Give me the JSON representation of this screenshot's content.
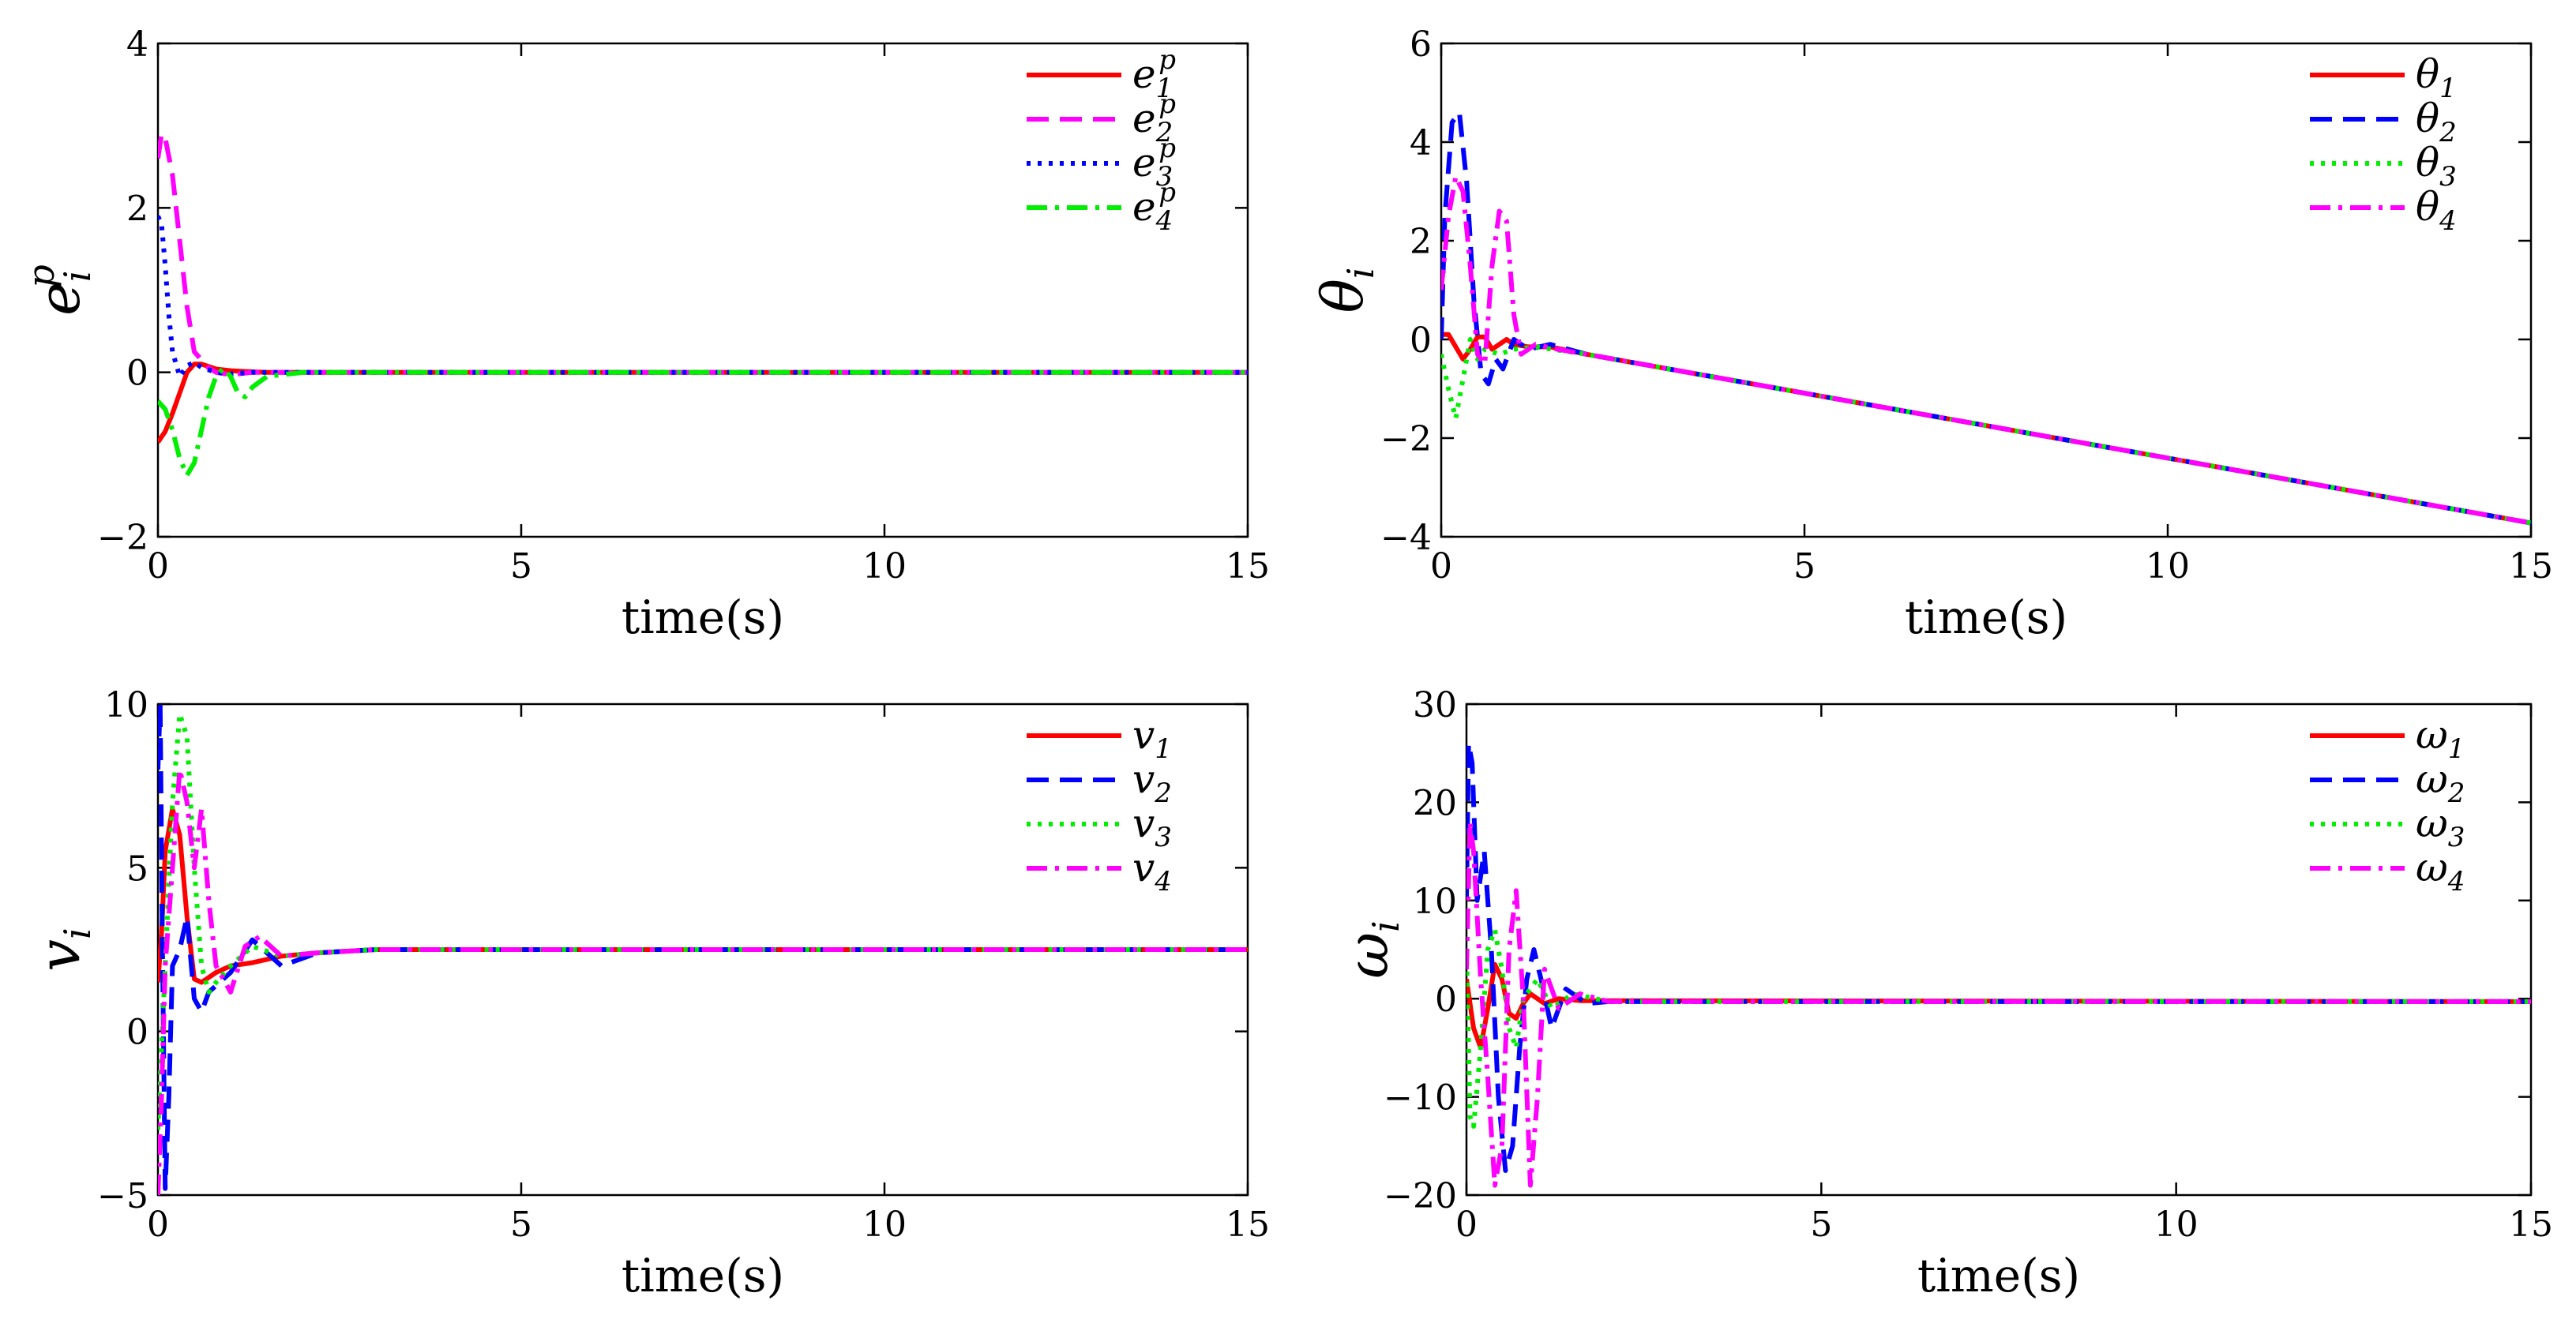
{
  "chart_data": [
    {
      "type": "line",
      "id": "ep",
      "ylabel": "e_i^p",
      "ylabel_main": "e",
      "ylabel_sub": "i",
      "ylabel_sup": "p",
      "xlabel": "time(s)",
      "xlim": [
        0,
        15
      ],
      "ylim": [
        -2,
        4
      ],
      "xticks": [
        0,
        5,
        10,
        15
      ],
      "yticks": [
        -2,
        0,
        2,
        4
      ],
      "xtick_labels": [
        "0",
        "5",
        "10",
        "15"
      ],
      "ytick_labels": [
        "−2",
        "0",
        "2",
        "4"
      ],
      "legend_position": "top-right",
      "series": [
        {
          "name": "e_1^p",
          "label_main": "e",
          "label_sub": "1",
          "label_sup": "p",
          "color": "#ff0000",
          "style": "solid",
          "x": [
            0,
            0.1,
            0.2,
            0.3,
            0.4,
            0.5,
            0.6,
            0.7,
            0.8,
            1.0,
            1.2,
            1.5,
            2,
            15
          ],
          "y": [
            -0.85,
            -0.72,
            -0.5,
            -0.25,
            0.0,
            0.1,
            0.1,
            0.07,
            0.04,
            0.02,
            0.01,
            0.0,
            0.0,
            0.0
          ]
        },
        {
          "name": "e_2^p",
          "label_main": "e",
          "label_sub": "2",
          "label_sup": "p",
          "color": "#ff00ff",
          "style": "dashed",
          "x": [
            0,
            0.05,
            0.1,
            0.2,
            0.3,
            0.4,
            0.5,
            0.6,
            0.7,
            0.8,
            1.0,
            1.3,
            2,
            15
          ],
          "y": [
            2.6,
            2.9,
            2.85,
            2.4,
            1.6,
            0.8,
            0.25,
            0.15,
            0.05,
            0.0,
            -0.03,
            0.0,
            0.0,
            0.0
          ]
        },
        {
          "name": "e_3^p",
          "label_main": "e",
          "label_sub": "3",
          "label_sup": "p",
          "color": "#0000ff",
          "style": "dotted",
          "x": [
            0,
            0.05,
            0.1,
            0.15,
            0.2,
            0.3,
            0.4,
            0.5,
            0.6,
            0.8,
            1.0,
            1.3,
            2,
            15
          ],
          "y": [
            1.9,
            1.8,
            1.3,
            0.7,
            0.25,
            -0.05,
            0.08,
            0.12,
            0.06,
            0.0,
            -0.02,
            0.0,
            0.0,
            0.0
          ]
        },
        {
          "name": "e_4^p",
          "label_main": "e",
          "label_sub": "4",
          "label_sup": "p",
          "color": "#00ee00",
          "style": "dashdot",
          "x": [
            0,
            0.1,
            0.2,
            0.3,
            0.4,
            0.5,
            0.6,
            0.7,
            0.8,
            0.9,
            1.0,
            1.1,
            1.2,
            1.3,
            1.5,
            2,
            15
          ],
          "y": [
            -0.35,
            -0.45,
            -0.7,
            -1.05,
            -1.25,
            -1.1,
            -0.7,
            -0.3,
            -0.05,
            0.05,
            -0.05,
            -0.25,
            -0.3,
            -0.18,
            -0.05,
            0.0,
            0.0
          ]
        }
      ]
    },
    {
      "type": "line",
      "id": "theta",
      "ylabel": "θ_i",
      "ylabel_main": "θ",
      "ylabel_sub": "i",
      "xlabel": "time(s)",
      "xlim": [
        0,
        15
      ],
      "ylim": [
        -4,
        6
      ],
      "xticks": [
        0,
        5,
        10,
        15
      ],
      "yticks": [
        -4,
        -2,
        0,
        2,
        4,
        6
      ],
      "xtick_labels": [
        "0",
        "5",
        "10",
        "15"
      ],
      "ytick_labels": [
        "−4",
        "−2",
        "0",
        "2",
        "4",
        "6"
      ],
      "legend_position": "top-right",
      "series": [
        {
          "name": "θ_1",
          "label_main": "θ",
          "label_sub": "1",
          "color": "#ff0000",
          "style": "solid",
          "x": [
            0,
            0.1,
            0.2,
            0.3,
            0.4,
            0.5,
            0.6,
            0.7,
            0.8,
            0.9,
            1.0,
            1.2,
            1.5,
            2,
            15
          ],
          "y": [
            0.1,
            0.1,
            -0.15,
            -0.4,
            -0.2,
            0.05,
            0.05,
            -0.2,
            -0.1,
            0.0,
            -0.1,
            -0.15,
            -0.15,
            -0.3,
            -3.72
          ]
        },
        {
          "name": "θ_2",
          "label_main": "θ",
          "label_sub": "2",
          "color": "#0000ff",
          "style": "dashed",
          "x": [
            0,
            0.05,
            0.15,
            0.25,
            0.35,
            0.45,
            0.55,
            0.65,
            0.75,
            0.85,
            1.0,
            1.2,
            1.5,
            2,
            15
          ],
          "y": [
            0.0,
            2.5,
            4.4,
            4.6,
            3.2,
            0.8,
            -0.7,
            -0.9,
            -0.4,
            -0.6,
            0.0,
            -0.2,
            -0.1,
            -0.3,
            -3.72
          ]
        },
        {
          "name": "θ_3",
          "label_main": "θ",
          "label_sub": "3",
          "color": "#00ee00",
          "style": "dotted",
          "x": [
            0,
            0.1,
            0.2,
            0.3,
            0.4,
            0.5,
            0.6,
            0.8,
            1.0,
            1.3,
            2,
            15
          ],
          "y": [
            -0.3,
            -1.0,
            -1.6,
            -0.8,
            0.0,
            -0.4,
            -0.2,
            -0.3,
            -0.2,
            -0.15,
            -0.3,
            -3.72
          ]
        },
        {
          "name": "θ_4",
          "label_main": "θ",
          "label_sub": "4",
          "color": "#ff00ff",
          "style": "dashdot",
          "x": [
            0,
            0.1,
            0.2,
            0.3,
            0.4,
            0.5,
            0.6,
            0.7,
            0.8,
            0.9,
            1.0,
            1.1,
            1.3,
            1.6,
            2,
            15
          ],
          "y": [
            1.0,
            2.5,
            3.3,
            3.0,
            1.5,
            -0.3,
            -0.5,
            1.5,
            2.6,
            2.4,
            0.5,
            -0.3,
            -0.1,
            -0.2,
            -0.3,
            -3.72
          ]
        }
      ]
    },
    {
      "type": "line",
      "id": "v",
      "ylabel": "v_i",
      "ylabel_main": "v",
      "ylabel_sub": "i",
      "xlabel": "time(s)",
      "xlim": [
        0,
        15
      ],
      "ylim": [
        -5,
        10
      ],
      "xticks": [
        0,
        5,
        10,
        15
      ],
      "yticks": [
        -5,
        0,
        5,
        10
      ],
      "xtick_labels": [
        "0",
        "5",
        "10",
        "15"
      ],
      "ytick_labels": [
        "−5",
        "0",
        "5",
        "10"
      ],
      "legend_position": "top-right",
      "series": [
        {
          "name": "v_1",
          "label_main": "v",
          "label_sub": "1",
          "color": "#ff0000",
          "style": "solid",
          "x": [
            0,
            0.05,
            0.1,
            0.2,
            0.3,
            0.4,
            0.5,
            0.6,
            0.8,
            1.0,
            1.3,
            1.7,
            2.2,
            3,
            15
          ],
          "y": [
            1.5,
            3.0,
            5.5,
            6.8,
            6.0,
            3.5,
            1.6,
            1.5,
            1.8,
            2.0,
            2.1,
            2.3,
            2.4,
            2.5,
            2.5
          ]
        },
        {
          "name": "v_2",
          "label_main": "v",
          "label_sub": "2",
          "color": "#0000ff",
          "style": "dashed",
          "x": [
            0,
            0.03,
            0.06,
            0.1,
            0.15,
            0.2,
            0.3,
            0.4,
            0.5,
            0.6,
            0.7,
            0.8,
            1.0,
            1.3,
            1.7,
            2.2,
            3,
            15
          ],
          "y": [
            8.0,
            10.0,
            3.0,
            -4.8,
            -2.0,
            2.0,
            2.5,
            3.5,
            1.0,
            0.6,
            1.2,
            1.4,
            1.8,
            2.8,
            2.0,
            2.4,
            2.5,
            2.5
          ]
        },
        {
          "name": "v_3",
          "label_main": "v",
          "label_sub": "3",
          "color": "#00ee00",
          "style": "dotted",
          "x": [
            0,
            0.1,
            0.2,
            0.3,
            0.4,
            0.5,
            0.6,
            0.7,
            0.8,
            1.0,
            1.3,
            1.7,
            2.2,
            3,
            15
          ],
          "y": [
            -3.0,
            2.0,
            7.0,
            9.7,
            9.0,
            5.0,
            2.0,
            1.2,
            1.5,
            2.0,
            2.6,
            2.3,
            2.4,
            2.5,
            2.5
          ]
        },
        {
          "name": "v_4",
          "label_main": "v",
          "label_sub": "4",
          "color": "#ff00ff",
          "style": "dashdot",
          "x": [
            0,
            0.05,
            0.1,
            0.2,
            0.3,
            0.4,
            0.5,
            0.6,
            0.7,
            0.8,
            1.0,
            1.2,
            1.4,
            1.7,
            2.2,
            3,
            15
          ],
          "y": [
            -5.0,
            -2.0,
            2.0,
            5.0,
            8.0,
            7.0,
            5.0,
            6.8,
            4.0,
            2.0,
            1.2,
            2.6,
            2.9,
            2.3,
            2.4,
            2.5,
            2.5
          ]
        }
      ]
    },
    {
      "type": "line",
      "id": "omega",
      "ylabel": "ω_i",
      "ylabel_main": "ω",
      "ylabel_sub": "i",
      "xlabel": "time(s)",
      "xlim": [
        0,
        15
      ],
      "ylim": [
        -20,
        30
      ],
      "xticks": [
        0,
        5,
        10,
        15
      ],
      "yticks": [
        -20,
        -10,
        0,
        10,
        20,
        30
      ],
      "xtick_labels": [
        "0",
        "5",
        "10",
        "15"
      ],
      "ytick_labels": [
        "−20",
        "−10",
        "0",
        "10",
        "20",
        "30"
      ],
      "legend_position": "top-right",
      "series": [
        {
          "name": "ω_1",
          "label_main": "ω",
          "label_sub": "1",
          "color": "#ff0000",
          "style": "solid",
          "x": [
            0,
            0.1,
            0.2,
            0.3,
            0.4,
            0.5,
            0.6,
            0.7,
            0.8,
            0.9,
            1.0,
            1.1,
            1.3,
            1.6,
            2,
            15
          ],
          "y": [
            2.0,
            -3.0,
            -5.0,
            -1.0,
            3.5,
            2.0,
            -1.5,
            -2.0,
            -0.5,
            0.5,
            0.0,
            -0.5,
            0.0,
            -0.2,
            -0.2,
            -0.3
          ]
        },
        {
          "name": "ω_2",
          "label_main": "ω",
          "label_sub": "2",
          "color": "#0000ff",
          "style": "dashed",
          "x": [
            0,
            0.03,
            0.08,
            0.15,
            0.25,
            0.35,
            0.45,
            0.55,
            0.65,
            0.75,
            0.85,
            0.95,
            1.05,
            1.2,
            1.4,
            1.7,
            2,
            15
          ],
          "y": [
            10.0,
            26.0,
            24.0,
            10.0,
            15.0,
            5.0,
            -10.0,
            -17.5,
            -15.0,
            -5.0,
            2.0,
            5.0,
            2.0,
            -3.0,
            1.0,
            -0.5,
            -0.3,
            -0.3
          ]
        },
        {
          "name": "ω_3",
          "label_main": "ω",
          "label_sub": "3",
          "color": "#00ee00",
          "style": "dotted",
          "x": [
            0,
            0.05,
            0.1,
            0.2,
            0.3,
            0.4,
            0.5,
            0.6,
            0.7,
            0.8,
            1.0,
            1.2,
            1.5,
            2,
            15
          ],
          "y": [
            5.0,
            -12.0,
            -13.0,
            -5.0,
            5.0,
            7.0,
            3.0,
            -3.0,
            -5.0,
            0.0,
            2.0,
            -1.0,
            0.5,
            -0.3,
            -0.3
          ]
        },
        {
          "name": "ω_4",
          "label_main": "ω",
          "label_sub": "4",
          "color": "#ff00ff",
          "style": "dashdot",
          "x": [
            0,
            0.05,
            0.1,
            0.2,
            0.3,
            0.4,
            0.5,
            0.6,
            0.7,
            0.8,
            0.9,
            1.0,
            1.1,
            1.3,
            1.6,
            2,
            15
          ],
          "y": [
            3.0,
            18.0,
            15.0,
            2.0,
            -8.0,
            -19.0,
            -15.0,
            5.0,
            11.0,
            0.0,
            -19.0,
            -10.0,
            3.0,
            -1.0,
            0.5,
            -0.3,
            -0.3
          ]
        }
      ]
    }
  ]
}
